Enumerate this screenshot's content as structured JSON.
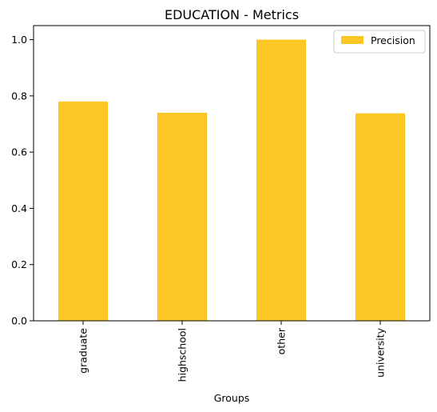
{
  "chart_data": {
    "type": "bar",
    "title": "EDUCATION - Metrics",
    "xlabel": "Groups",
    "ylabel": "",
    "categories": [
      "graduate",
      "highschool",
      "other",
      "university"
    ],
    "series": [
      {
        "name": "Precision",
        "values": [
          0.78,
          0.74,
          1.0,
          0.738
        ],
        "color": "#fcc725"
      }
    ],
    "ylim": [
      0,
      1.05
    ],
    "yticks": [
      0.0,
      0.2,
      0.4,
      0.6,
      0.8,
      1.0
    ],
    "ytick_labels": [
      "0.0",
      "0.2",
      "0.4",
      "0.6",
      "0.8",
      "1.0"
    ],
    "grid": false,
    "legend_position": "top-right",
    "xtick_rotation": "vertical"
  }
}
